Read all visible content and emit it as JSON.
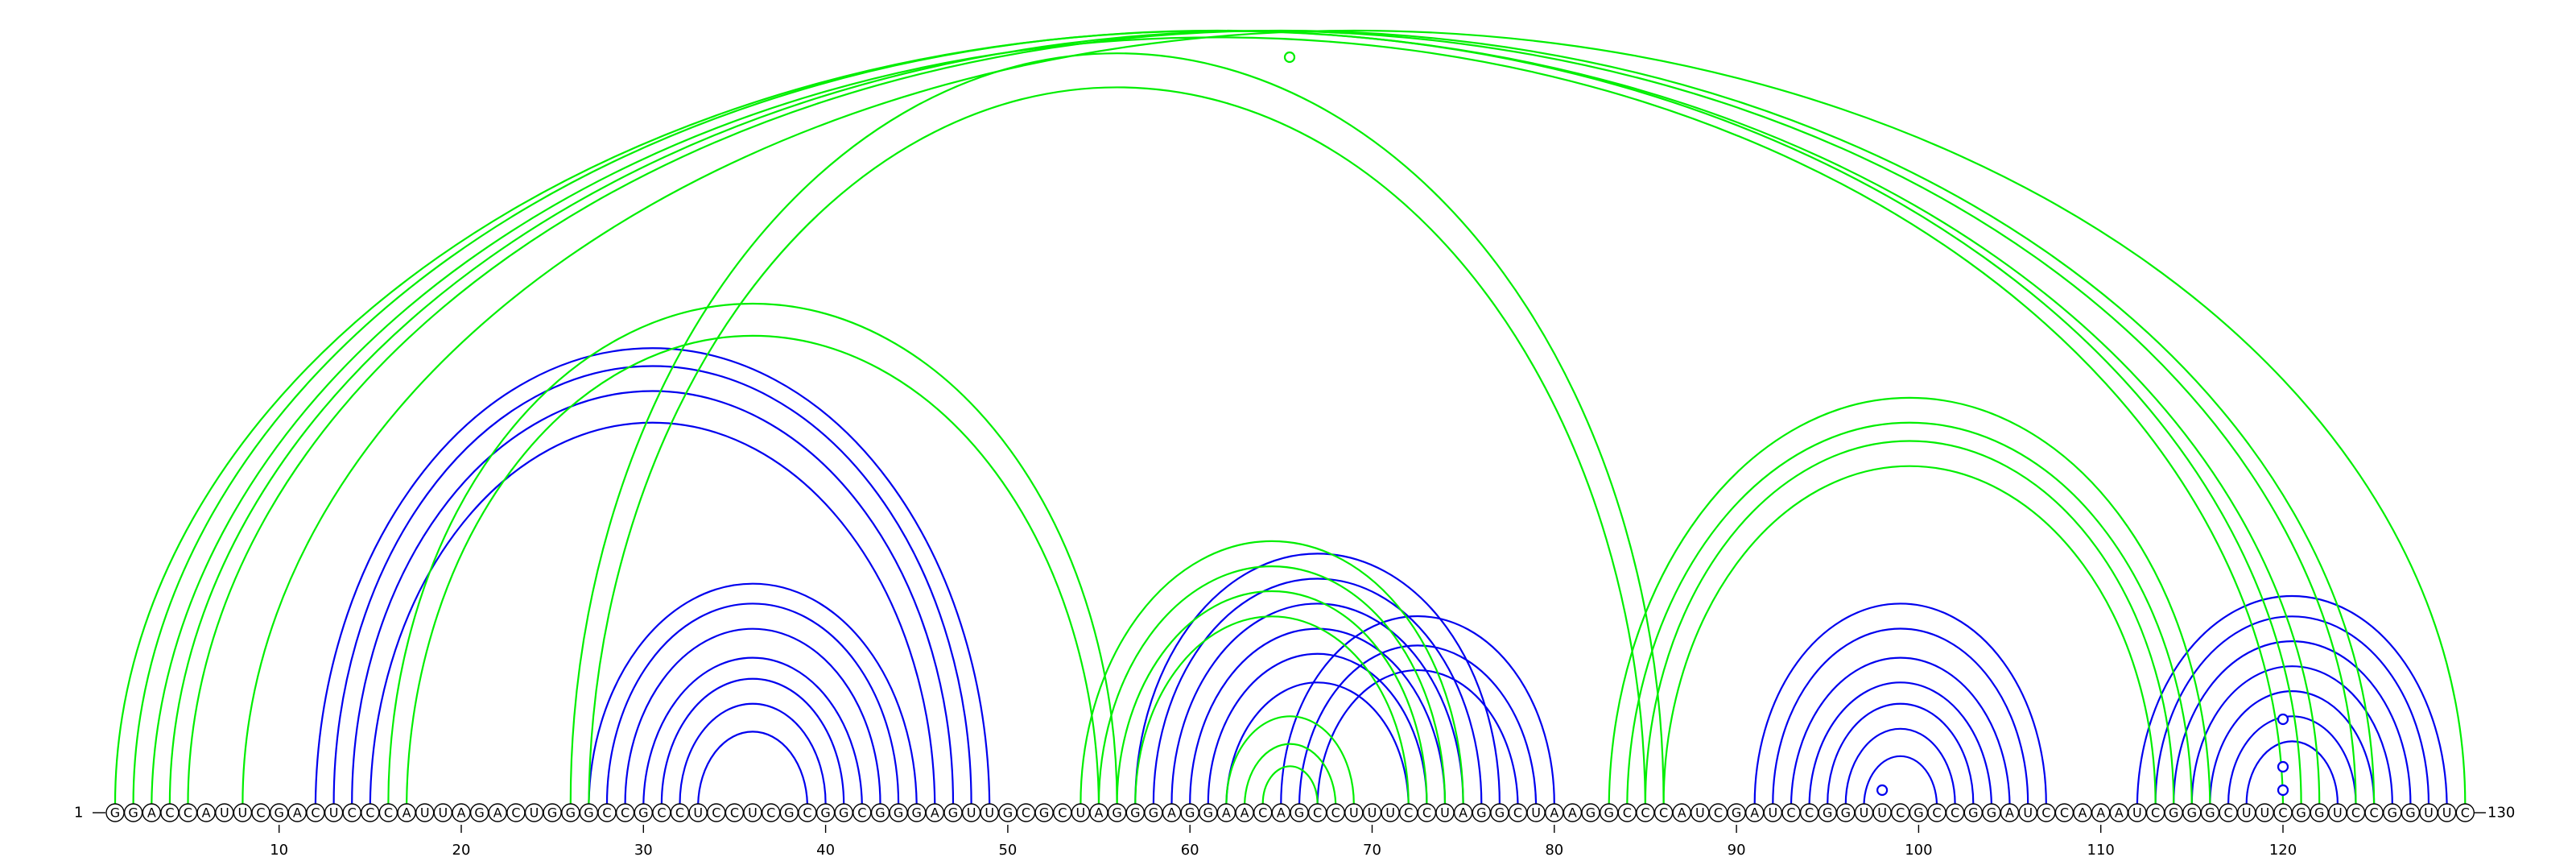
{
  "chart_data": {
    "type": "arc-diagram",
    "sequence": "GGACCAUUCGACUCCCAUUAGACUGGGCCGCCUCCUCGCGGCGGGAGUUGCGCUAGGGAGGAACAGCCUUUCCUAGGCUAAGGCCCAUCGAUCCGGUUCGCCGGAUCCAAAUCGGGCUUCGGUCCGGUUC",
    "start_label": "1",
    "end_label": "130",
    "ticks": [
      10,
      20,
      30,
      40,
      50,
      60,
      70,
      80,
      90,
      100,
      110,
      120
    ],
    "colors": {
      "blue_pairs": "#0000ee",
      "green_pairs": "#00ee00",
      "nucleotide_stroke": "#000000",
      "background": "#ffffff"
    },
    "series": [
      {
        "color": "blue",
        "pairs": [
          [
            12,
            49
          ],
          [
            13,
            48
          ],
          [
            14,
            47
          ],
          [
            15,
            46
          ],
          [
            27,
            45
          ],
          [
            28,
            44
          ],
          [
            29,
            43
          ],
          [
            30,
            42
          ],
          [
            31,
            41
          ],
          [
            32,
            40
          ],
          [
            33,
            39
          ],
          [
            57,
            77
          ],
          [
            58,
            76
          ],
          [
            59,
            75
          ],
          [
            60,
            74
          ],
          [
            61,
            73
          ],
          [
            62,
            72
          ],
          [
            65,
            80
          ],
          [
            66,
            79
          ],
          [
            67,
            78
          ],
          [
            91,
            107
          ],
          [
            92,
            106
          ],
          [
            93,
            105
          ],
          [
            94,
            104
          ],
          [
            95,
            103
          ],
          [
            96,
            102
          ],
          [
            97,
            101
          ],
          [
            112,
            129
          ],
          [
            113,
            128
          ],
          [
            114,
            127
          ],
          [
            115,
            126
          ],
          [
            116,
            125
          ],
          [
            117,
            124
          ],
          [
            118,
            123
          ]
        ],
        "markers": [
          [
            98,
            100
          ],
          [
            120,
            0
          ],
          [
            120,
            1
          ],
          [
            120,
            2
          ]
        ]
      },
      {
        "color": "green",
        "pairs": [
          [
            1,
            122
          ],
          [
            2,
            121
          ],
          [
            3,
            120
          ],
          [
            4,
            124
          ],
          [
            5,
            125
          ],
          [
            16,
            56
          ],
          [
            17,
            55
          ],
          [
            26,
            86
          ],
          [
            27,
            85
          ],
          [
            54,
            75
          ],
          [
            55,
            74
          ],
          [
            56,
            73
          ],
          [
            57,
            72
          ],
          [
            62,
            69
          ],
          [
            63,
            68
          ],
          [
            64,
            67
          ],
          [
            83,
            116
          ],
          [
            84,
            115
          ],
          [
            85,
            114
          ],
          [
            86,
            113
          ],
          [
            8,
            130
          ]
        ],
        "markers": [
          [
            65.5,
            0
          ]
        ]
      }
    ]
  }
}
